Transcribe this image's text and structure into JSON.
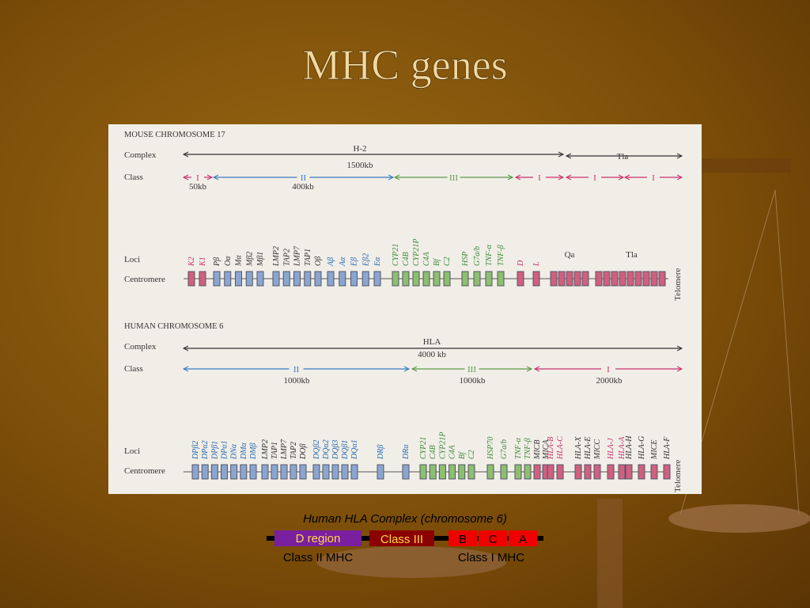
{
  "title": "MHC genes",
  "figure": {
    "labels": {
      "complex": "Complex",
      "class": "Class",
      "loci": "Loci",
      "centromere": "Centromere",
      "telomere": "Telomere"
    },
    "mouse": {
      "header": "MOUSE CHROMOSOME 17",
      "complex": [
        {
          "label": "H-2",
          "size": "1500kb"
        },
        {
          "label": "Tla"
        }
      ],
      "classes": [
        {
          "label": "I",
          "color": "#c8336e",
          "size": "50kb"
        },
        {
          "label": "II",
          "color": "#3a7cc0",
          "size": "400kb"
        },
        {
          "label": "III",
          "color": "#5a9a4a"
        },
        {
          "label": "I",
          "color": "#c8336e"
        },
        {
          "label": "I",
          "color": "#c8336e"
        },
        {
          "label": "I",
          "color": "#c8336e"
        }
      ],
      "loci": [
        {
          "color": "#d0607f",
          "text": "#c8336e",
          "genes": [
            "K2",
            "K1"
          ]
        },
        {
          "color": "#8aa6d0",
          "text": "#333",
          "genes": [
            "Pβ",
            "Oα",
            "Mα",
            "Mβ2",
            "Mβ1"
          ]
        },
        {
          "color": "#8aa6d0",
          "text": "#333",
          "genes": [
            "LMP2",
            "TAP2",
            "LMP7",
            "TAP1",
            "Oβ"
          ]
        },
        {
          "color": "#8aa6d0",
          "text": "#2a6ab0",
          "genes": [
            "Aβ",
            "Aα",
            "Eβ",
            "Eβ2",
            "Eα"
          ]
        },
        {
          "color": "#8cbf6e",
          "text": "#3f8a3a",
          "genes": [
            "CYP21",
            "C4B",
            "CYP21P",
            "C4A",
            "Bf",
            "C2"
          ]
        },
        {
          "color": "#8cbf6e",
          "text": "#3f8a3a",
          "genes": [
            "HSP",
            "G7a/b",
            "TNF-α",
            "TNF-β"
          ]
        },
        {
          "color": "#d0607f",
          "text": "#c8336e",
          "genes": [
            "D",
            "L"
          ]
        }
      ],
      "regions": [
        "Qa",
        "Tla"
      ]
    },
    "human": {
      "header": "HUMAN CHROMOSOME 6",
      "complex": {
        "label": "HLA",
        "size": "4000 kb"
      },
      "classes": [
        {
          "label": "II",
          "color": "#3a7cc0",
          "size": "1000kb"
        },
        {
          "label": "III",
          "color": "#5a9a4a",
          "size": "1000kb"
        },
        {
          "label": "I",
          "color": "#c8336e",
          "size": "2000kb"
        }
      ],
      "loci": [
        {
          "color": "#8aa6d0",
          "text": "#2a6ab0",
          "genes": [
            "DPβ2",
            "DPα2",
            "DPβ1",
            "DPα1",
            "DNα",
            "DMα",
            "DMβ"
          ]
        },
        {
          "color": "#8aa6d0",
          "text": "#333",
          "genes": [
            "LMP2",
            "TAP1",
            "LMP7",
            "TAP2",
            "DOβ"
          ]
        },
        {
          "color": "#8aa6d0",
          "text": "#2a6ab0",
          "genes": [
            "DQβ2",
            "DQα2",
            "DQβ3",
            "DQβ1",
            "DQα1"
          ]
        },
        {
          "color": "#8aa6d0",
          "text": "#2a6ab0",
          "genes": [
            "DRβ"
          ]
        },
        {
          "color": "#8aa6d0",
          "text": "#2a6ab0",
          "genes": [
            "DRα"
          ]
        },
        {
          "color": "#8cbf6e",
          "text": "#3f8a3a",
          "genes": [
            "CYP21",
            "C4B",
            "CYP21P",
            "C4A",
            "Bf",
            "C2"
          ]
        },
        {
          "color": "#8cbf6e",
          "text": "#3f8a3a",
          "genes": [
            "HSP70",
            "G7a/b"
          ]
        },
        {
          "color": "#8cbf6e",
          "text": "#3f8a3a",
          "genes": [
            "TNF-α",
            "TNF-β"
          ]
        },
        {
          "color": "#d0607f",
          "text": "#333",
          "genes": [
            "MICB",
            "MICA"
          ]
        },
        {
          "color": "#d0607f",
          "text": "#c8336e",
          "genes": [
            "HLA-B",
            "HLA-C"
          ]
        },
        {
          "color": "#d0607f",
          "text": "#333",
          "genes": [
            "HLA-X",
            "HLA-E",
            "MICC"
          ]
        },
        {
          "color": "#d0607f",
          "text": "#c8336e",
          "genes": [
            "HLA-J",
            "HLA-A"
          ]
        },
        {
          "color": "#d0607f",
          "text": "#333",
          "genes": [
            "HLA-H",
            "HLA-G",
            "MICE",
            "HLA-F"
          ]
        }
      ]
    }
  },
  "hla_bar": {
    "caption": "Human HLA Complex (chromosome 6)",
    "d_region": "D region",
    "class3": "Class III",
    "b": "B",
    "c": "C",
    "a": "A",
    "class2_label": "Class II MHC",
    "class1_label": "Class I MHC"
  }
}
